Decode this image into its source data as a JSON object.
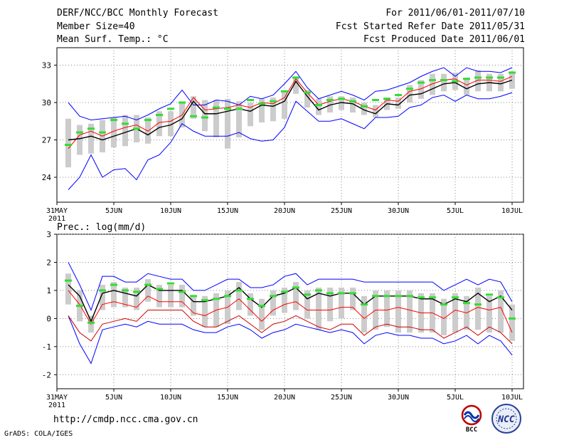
{
  "header": {
    "title": "DERF/NCC/BCC Monthly Forecast",
    "member_size": "Member Size=40",
    "variable": "Mean Surf. Temp.: °C",
    "period": "For 2011/06/01-2011/07/10",
    "started_refer": "Fcst Started Refer Date 2011/05/31",
    "produced": "Fcst Produced Date 2011/06/01"
  },
  "footer": {
    "url": "http://cmdp.ncc.cma.gov.cn",
    "grads": "GrADS: COLA/IGES"
  },
  "logos": {
    "bcc": "BCC",
    "ncc": "NCC"
  },
  "colors": {
    "upper": "#0000ff",
    "lower": "#0000ff",
    "mean": "#000000",
    "median": "#ff0000",
    "box": "#cccccc",
    "observed": "#33dd33",
    "grid": "#888888"
  },
  "chart_data": [
    {
      "type": "line",
      "name": "temperature",
      "title": "Mean Surf. Temp.: °C",
      "xlabel": "",
      "ylabel": "°C",
      "x_tick_labels": [
        "31MAY",
        "5JUN",
        "10JUN",
        "15JUN",
        "20JUN",
        "25JUN",
        "30JUN",
        "5JUL",
        "10JUL"
      ],
      "x_tick_days": [
        0,
        5,
        10,
        15,
        20,
        25,
        30,
        35,
        40
      ],
      "x_extra_label": "2011",
      "ylim": [
        22,
        34.4
      ],
      "yticks": [
        24,
        27,
        30,
        33
      ],
      "grid": true,
      "days": [
        1,
        2,
        3,
        4,
        5,
        6,
        7,
        8,
        9,
        10,
        11,
        12,
        13,
        14,
        15,
        16,
        17,
        18,
        19,
        20,
        21,
        22,
        23,
        24,
        25,
        26,
        27,
        28,
        29,
        30,
        31,
        32,
        33,
        34,
        35,
        36,
        37,
        38,
        39,
        40
      ],
      "series": [
        {
          "name": "max",
          "values": [
            30.0,
            28.9,
            28.6,
            28.7,
            28.8,
            28.9,
            28.6,
            29.0,
            29.5,
            29.9,
            31.0,
            29.8,
            29.8,
            30.2,
            30.1,
            29.8,
            30.5,
            30.3,
            30.6,
            31.5,
            32.5,
            31.2,
            30.3,
            30.6,
            30.9,
            30.6,
            30.2,
            30.9,
            31.0,
            31.3,
            31.6,
            32.1,
            32.5,
            32.8,
            32.1,
            32.8,
            32.5,
            32.5,
            32.4,
            32.8
          ]
        },
        {
          "name": "mean",
          "values": [
            27.0,
            27.1,
            27.3,
            27.0,
            27.3,
            27.6,
            27.9,
            27.4,
            28.0,
            28.2,
            28.7,
            30.1,
            29.1,
            29.1,
            29.3,
            29.5,
            29.3,
            29.8,
            29.7,
            30.1,
            31.7,
            30.5,
            29.4,
            29.8,
            30.0,
            29.9,
            29.4,
            29.1,
            29.9,
            29.8,
            30.6,
            30.7,
            31.1,
            31.5,
            31.6,
            31.1,
            31.5,
            31.6,
            31.5,
            31.8
          ]
        },
        {
          "name": "median",
          "values": [
            26.3,
            27.4,
            27.7,
            27.3,
            27.7,
            28.0,
            28.2,
            27.7,
            28.4,
            28.5,
            29.0,
            30.4,
            29.4,
            29.5,
            29.6,
            29.8,
            29.6,
            30.0,
            29.9,
            30.4,
            31.9,
            30.8,
            29.8,
            30.1,
            30.3,
            30.1,
            29.7,
            29.4,
            30.2,
            30.1,
            30.9,
            31.1,
            31.5,
            31.8,
            31.9,
            31.4,
            31.8,
            31.8,
            31.7,
            32.1
          ]
        },
        {
          "name": "min",
          "values": [
            23.0,
            24.0,
            25.8,
            24.0,
            24.6,
            24.7,
            23.8,
            25.4,
            25.8,
            26.8,
            28.3,
            27.7,
            27.3,
            27.3,
            27.3,
            27.6,
            27.1,
            26.9,
            27.0,
            28.0,
            30.1,
            29.3,
            28.5,
            28.5,
            28.7,
            28.3,
            27.9,
            28.8,
            28.8,
            28.9,
            29.6,
            29.8,
            30.4,
            30.6,
            30.1,
            30.6,
            30.3,
            30.3,
            30.5,
            30.8
          ]
        }
      ],
      "box_low": [
        24.8,
        25.8,
        25.9,
        26.0,
        26.4,
        26.5,
        26.8,
        26.7,
        27.3,
        27.3,
        28.0,
        28.7,
        27.7,
        27.2,
        26.3,
        27.2,
        28.1,
        28.4,
        28.5,
        28.7,
        30.7,
        29.6,
        29.0,
        29.2,
        29.4,
        29.2,
        29.0,
        28.8,
        29.4,
        29.5,
        30.0,
        30.3,
        30.6,
        30.9,
        31.0,
        30.6,
        30.9,
        30.9,
        30.9,
        31.1
      ],
      "box_high": [
        28.7,
        28.2,
        28.3,
        28.6,
        28.8,
        29.0,
        29.0,
        28.8,
        29.3,
        29.3,
        30.0,
        30.5,
        30.2,
        30.2,
        30.3,
        30.1,
        30.0,
        30.3,
        30.4,
        30.9,
        32.1,
        31.0,
        30.3,
        30.5,
        30.5,
        30.4,
        30.0,
        29.8,
        30.4,
        30.4,
        31.4,
        31.8,
        32.3,
        32.3,
        32.4,
        32.0,
        32.6,
        32.3,
        32.3,
        32.5
      ],
      "observed": [
        26.6,
        27.6,
        27.9,
        27.6,
        28.6,
        28.3,
        27.9,
        28.6,
        29.0,
        29.5,
        30.0,
        28.9,
        28.8,
        29.6,
        29.5,
        29.5,
        30.2,
        29.9,
        30.1,
        30.9,
        32.0,
        30.8,
        29.8,
        30.2,
        30.3,
        30.1,
        29.7,
        30.2,
        30.3,
        30.6,
        31.1,
        31.6,
        31.8,
        31.8,
        31.7,
        31.9,
        32.0,
        32.0,
        32.0,
        32.4
      ]
    },
    {
      "type": "line",
      "name": "precipitation",
      "title": "Prec.: log(mm/d)",
      "xlabel": "",
      "ylabel": "log(mm/d)",
      "x_tick_labels": [
        "31MAY",
        "5JUN",
        "10JUN",
        "15JUN",
        "20JUN",
        "25JUN",
        "30JUN",
        "5JUL",
        "10JUL"
      ],
      "x_tick_days": [
        0,
        5,
        10,
        15,
        20,
        25,
        30,
        35,
        40
      ],
      "x_extra_label": "2011",
      "ylim": [
        -2.5,
        3
      ],
      "yticks": [
        -2,
        -1,
        0,
        1,
        2,
        3
      ],
      "grid": true,
      "days": [
        1,
        2,
        3,
        4,
        5,
        6,
        7,
        8,
        9,
        10,
        11,
        12,
        13,
        14,
        15,
        16,
        17,
        18,
        19,
        20,
        21,
        22,
        23,
        24,
        25,
        26,
        27,
        28,
        29,
        30,
        31,
        32,
        33,
        34,
        35,
        36,
        37,
        38,
        39,
        40
      ],
      "series": [
        {
          "name": "max",
          "values": [
            2.0,
            1.2,
            0.3,
            1.5,
            1.5,
            1.3,
            1.3,
            1.6,
            1.5,
            1.4,
            1.4,
            1.0,
            1.0,
            1.2,
            1.4,
            1.4,
            1.1,
            1.1,
            1.2,
            1.5,
            1.6,
            1.2,
            1.4,
            1.4,
            1.4,
            1.4,
            1.3,
            1.3,
            1.3,
            1.3,
            1.3,
            1.3,
            1.3,
            1.0,
            1.2,
            1.4,
            1.2,
            1.4,
            1.3,
            0.6
          ]
        },
        {
          "name": "mean",
          "values": [
            1.2,
            0.8,
            -0.1,
            0.9,
            1.0,
            0.9,
            0.8,
            1.2,
            1.0,
            1.0,
            1.0,
            0.6,
            0.6,
            0.7,
            0.8,
            1.1,
            0.7,
            0.4,
            0.8,
            0.9,
            1.1,
            0.7,
            0.9,
            0.8,
            0.9,
            0.9,
            0.5,
            0.8,
            0.8,
            0.8,
            0.8,
            0.7,
            0.7,
            0.5,
            0.7,
            0.6,
            0.9,
            0.6,
            0.8,
            0.3
          ]
        },
        {
          "name": "median",
          "values": [
            1.0,
            0.5,
            -0.2,
            0.5,
            0.6,
            0.5,
            0.4,
            0.8,
            0.6,
            0.6,
            0.6,
            0.2,
            0.1,
            0.3,
            0.4,
            0.7,
            0.3,
            -0.1,
            0.3,
            0.5,
            0.6,
            0.3,
            0.3,
            0.3,
            0.4,
            0.4,
            0.0,
            0.3,
            0.3,
            0.4,
            0.3,
            0.2,
            0.2,
            0.0,
            0.3,
            0.2,
            0.4,
            0.3,
            0.4,
            -0.5
          ]
        },
        {
          "name": "min",
          "values": [
            0.1,
            -0.9,
            -1.6,
            -0.4,
            -0.3,
            -0.2,
            -0.3,
            -0.1,
            -0.2,
            -0.2,
            -0.2,
            -0.4,
            -0.5,
            -0.5,
            -0.3,
            -0.2,
            -0.4,
            -0.7,
            -0.5,
            -0.4,
            -0.2,
            -0.3,
            -0.4,
            -0.5,
            -0.4,
            -0.5,
            -0.9,
            -0.6,
            -0.5,
            -0.6,
            -0.6,
            -0.7,
            -0.7,
            -0.9,
            -0.8,
            -0.6,
            -0.9,
            -0.6,
            -0.8,
            -1.3
          ]
        },
        {
          "name": "lower_dark",
          "values": [
            0.1,
            -0.5,
            -0.8,
            -0.2,
            -0.1,
            0.0,
            -0.1,
            0.3,
            0.3,
            0.3,
            0.3,
            -0.1,
            -0.3,
            -0.3,
            -0.1,
            0.1,
            -0.2,
            -0.5,
            -0.2,
            -0.1,
            0.1,
            -0.1,
            -0.3,
            -0.4,
            -0.2,
            -0.2,
            -0.6,
            -0.3,
            -0.2,
            -0.3,
            -0.3,
            -0.4,
            -0.4,
            -0.7,
            -0.5,
            -0.3,
            -0.6,
            -0.3,
            -0.5,
            -0.9
          ]
        }
      ],
      "box_low": [
        0.5,
        -0.1,
        -0.5,
        0.3,
        0.4,
        0.4,
        0.3,
        0.6,
        0.4,
        0.4,
        0.4,
        0.1,
        -0.3,
        -0.3,
        -0.2,
        0.3,
        0.1,
        -0.4,
        0.1,
        0.2,
        0.3,
        0.0,
        -0.4,
        -0.1,
        0.0,
        0.3,
        -0.5,
        -0.4,
        -0.3,
        -0.5,
        -0.5,
        -0.5,
        -0.5,
        -0.6,
        -0.5,
        -0.4,
        -0.4,
        -0.5,
        -0.5,
        -0.8
      ],
      "box_high": [
        1.6,
        1.0,
        0.1,
        1.2,
        1.3,
        1.1,
        1.1,
        1.4,
        1.2,
        1.2,
        1.2,
        0.8,
        0.8,
        0.9,
        1.0,
        1.3,
        0.9,
        0.7,
        1.0,
        1.1,
        1.3,
        1.0,
        1.1,
        1.1,
        1.1,
        1.1,
        0.8,
        1.0,
        1.0,
        1.0,
        1.0,
        0.9,
        0.9,
        0.7,
        0.9,
        0.8,
        1.1,
        0.8,
        1.0,
        0.5
      ],
      "observed": [
        1.35,
        0.45,
        -0.15,
        1.0,
        1.2,
        1.0,
        0.95,
        1.2,
        1.05,
        1.25,
        0.95,
        0.8,
        0.65,
        0.7,
        0.8,
        1.0,
        0.7,
        0.45,
        0.8,
        0.95,
        1.1,
        0.85,
        1.0,
        0.9,
        0.9,
        0.9,
        0.5,
        0.8,
        0.8,
        0.8,
        0.8,
        0.75,
        0.75,
        0.5,
        0.75,
        0.55,
        0.5,
        0.85,
        0.75,
        0.0
      ]
    }
  ]
}
